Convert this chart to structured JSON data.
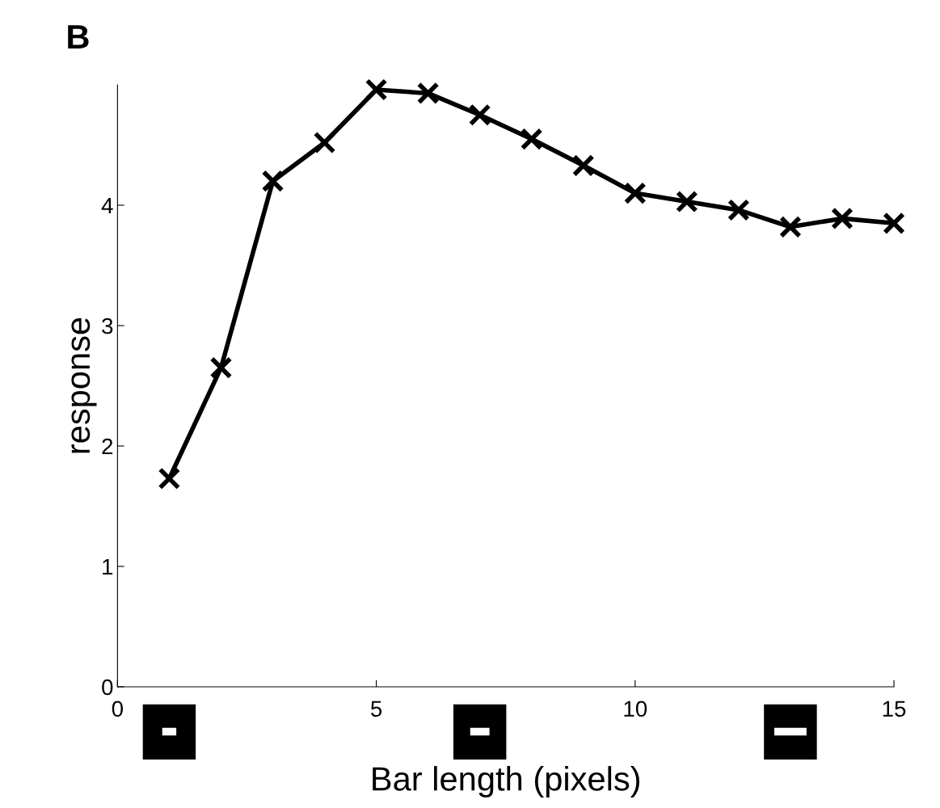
{
  "chart_data": {
    "type": "line",
    "title": "B",
    "xlabel": "Bar length (pixels)",
    "ylabel": "response",
    "x": [
      1,
      2,
      3,
      4,
      5,
      6,
      7,
      8,
      9,
      10,
      11,
      12,
      13,
      14,
      15
    ],
    "series": [
      {
        "color": "#000000",
        "values": [
          1.73,
          2.65,
          4.2,
          4.52,
          4.96,
          4.93,
          4.75,
          4.55,
          4.33,
          4.1,
          4.03,
          3.96,
          3.82,
          3.89,
          3.85
        ]
      }
    ],
    "xlim": [
      0,
      15
    ],
    "xticks": [
      0,
      5,
      10,
      15
    ],
    "ylim": [
      0,
      5
    ],
    "yticks": [
      0,
      1,
      2,
      3,
      4
    ],
    "grid": false,
    "legend": false,
    "marker": "cross",
    "line_style": "solid"
  }
}
